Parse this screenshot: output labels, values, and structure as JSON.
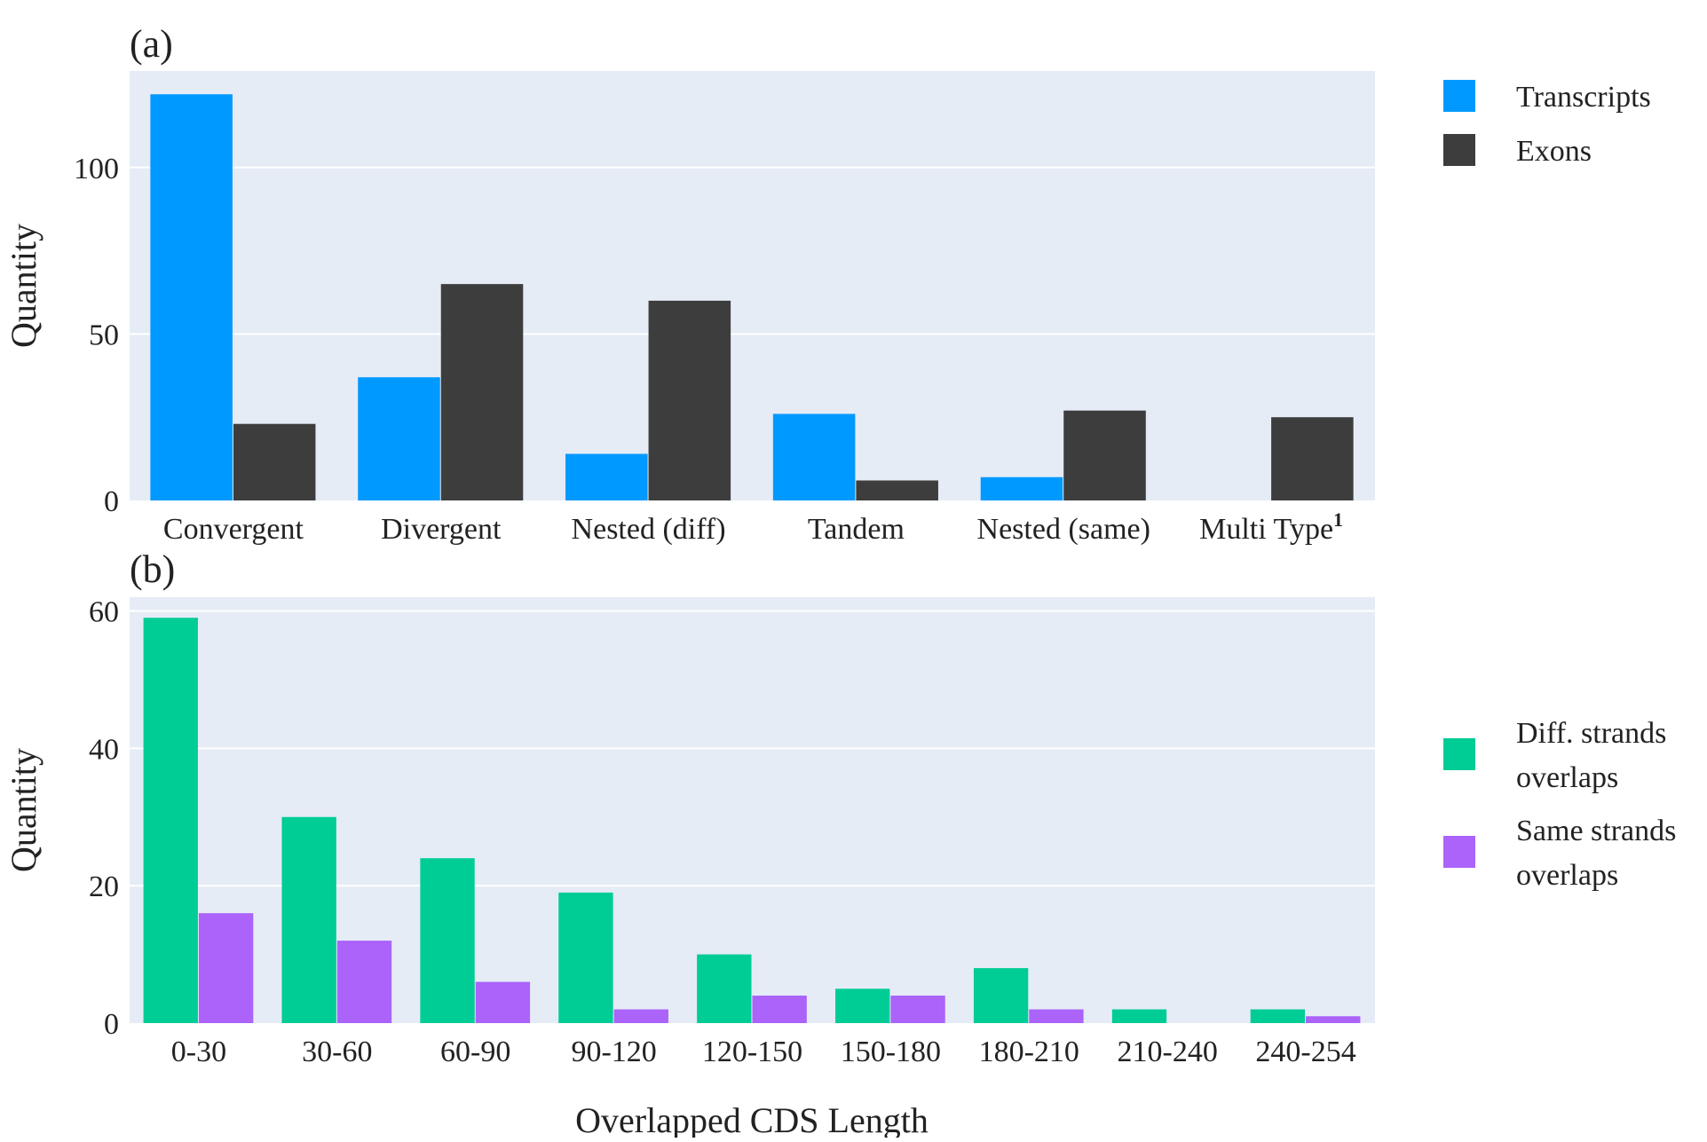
{
  "colors": {
    "plot_bg": "#e5ecf6",
    "grid": "#ffffff",
    "transcripts": "#0099ff",
    "exons": "#3d3d3d",
    "diff_strands": "#00cc96",
    "same_strands": "#ab63fa"
  },
  "chart_data": [
    {
      "type": "bar",
      "panel_label": "(a)",
      "categories": [
        "Convergent",
        "Divergent",
        "Nested (diff)",
        "Tandem",
        "Nested (same)",
        "Multi Type"
      ],
      "category_superscripts": [
        "",
        "",
        "",
        "",
        "",
        "1"
      ],
      "series": [
        {
          "name": "Transcripts",
          "values": [
            122,
            37,
            14,
            26,
            7,
            0
          ]
        },
        {
          "name": "Exons",
          "values": [
            23,
            65,
            60,
            6,
            27,
            25
          ]
        }
      ],
      "ylabel": "Quantity",
      "xlabel": "",
      "ylim": [
        0,
        129
      ],
      "yticks": [
        0,
        50,
        100
      ],
      "grid": true,
      "legend_position": "right-top"
    },
    {
      "type": "bar",
      "panel_label": "(b)",
      "categories": [
        "0-30",
        "30-60",
        "60-90",
        "90-120",
        "120-150",
        "150-180",
        "180-210",
        "210-240",
        "240-254"
      ],
      "series": [
        {
          "name": "Diff. strands overlaps",
          "legend_lines": [
            "Diff. strands",
            "overlaps"
          ],
          "values": [
            59,
            30,
            24,
            19,
            10,
            5,
            8,
            2,
            2
          ]
        },
        {
          "name": "Same strands overlaps",
          "legend_lines": [
            "Same strands",
            "overlaps"
          ],
          "values": [
            16,
            12,
            6,
            2,
            4,
            4,
            2,
            0,
            1
          ]
        }
      ],
      "ylabel": "Quantity",
      "xlabel": "Overlapped CDS Length",
      "ylim": [
        0,
        62
      ],
      "yticks": [
        0,
        20,
        40,
        60
      ],
      "grid": true,
      "legend_position": "right-middle"
    }
  ]
}
